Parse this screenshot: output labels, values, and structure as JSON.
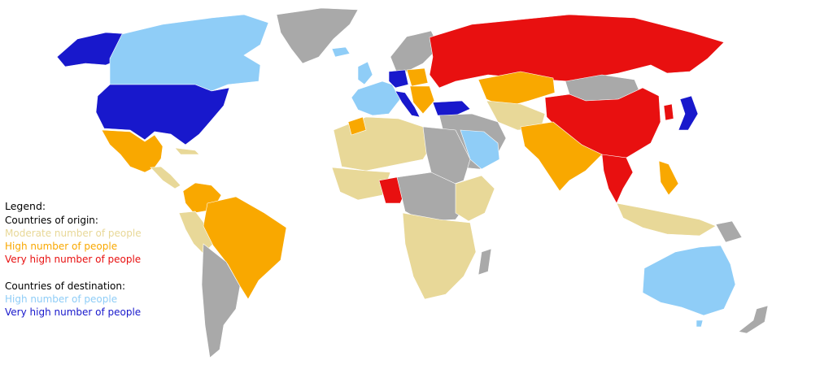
{
  "legend": {
    "title": "Legend:",
    "origin_heading": "Countries of origin:",
    "origin_items": [
      {
        "label": "Moderate number of people",
        "color": "#e8d898"
      },
      {
        "label": "High number of people",
        "color": "#f9a800"
      },
      {
        "label": "Very high number of people",
        "color": "#e81010"
      }
    ],
    "destination_heading": "Countries of destination:",
    "destination_items": [
      {
        "label": "High number of people",
        "color": "#8fcdf7"
      },
      {
        "label": "Very high number of people",
        "color": "#1818cc"
      }
    ]
  },
  "map_colors": {
    "no_data": "#a9a9a9",
    "moderate_origin": "#e8d898",
    "high_origin": "#f9a800",
    "very_high_origin": "#e81010",
    "high_destination": "#8fcdf7",
    "very_high_destination": "#1818cc"
  }
}
